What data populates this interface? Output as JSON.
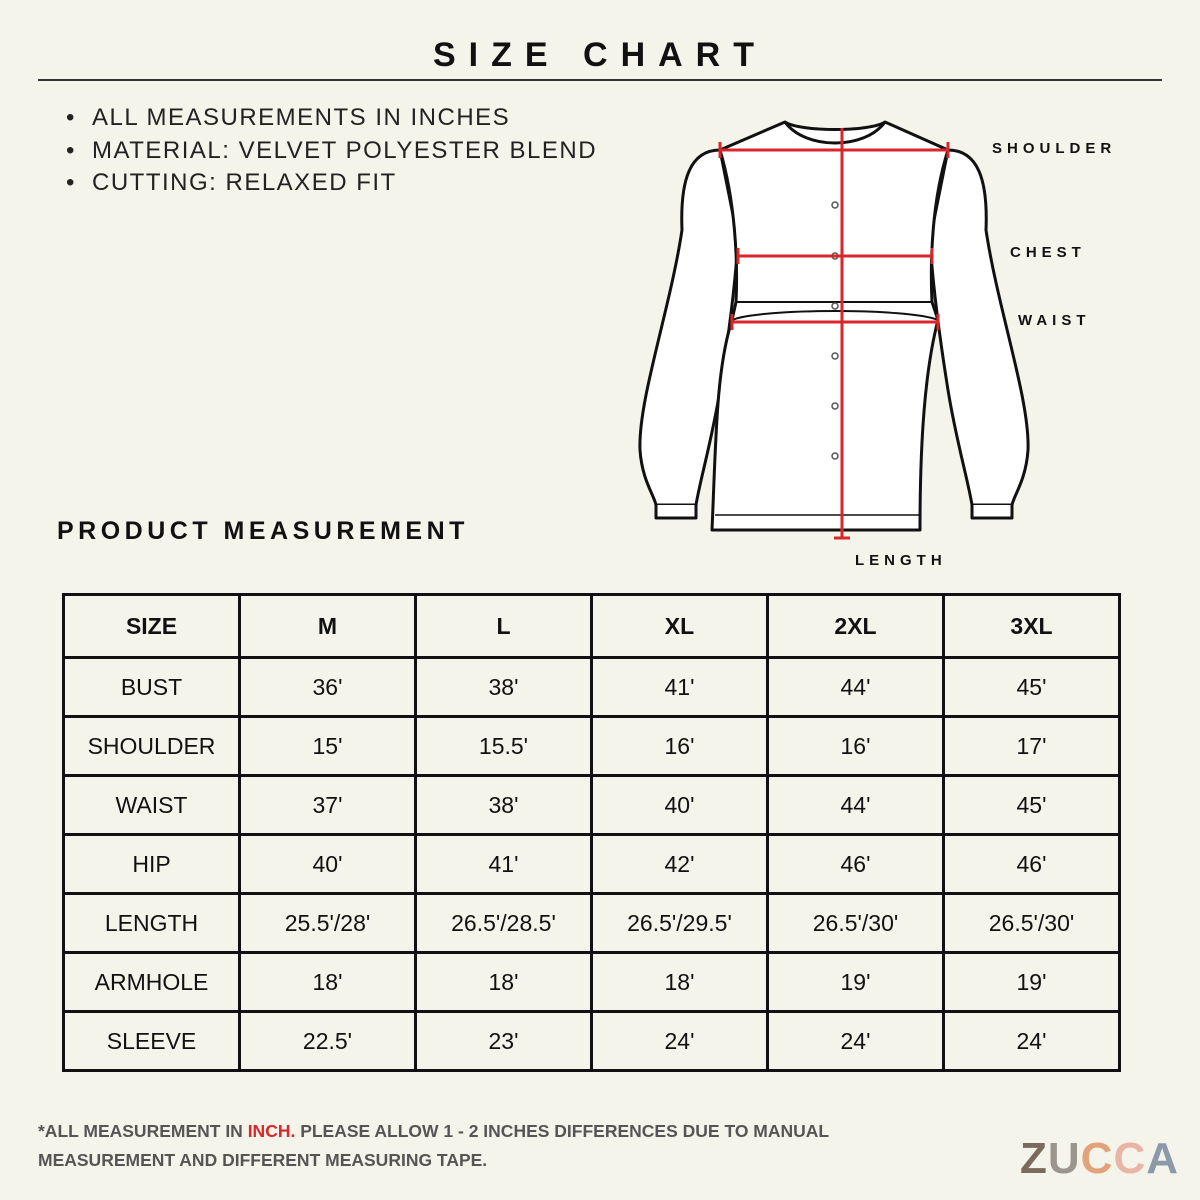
{
  "title": "SIZE CHART",
  "notes": [
    "ALL MEASUREMENTS IN INCHES",
    "MATERIAL: VELVET POLYESTER BLEND",
    "CUTTING: RELAXED FIT"
  ],
  "diagram_labels": {
    "shoulder": "SHOULDER",
    "chest": "CHEST",
    "waist": "WAIST",
    "length": "LENGTH"
  },
  "section_title": "PRODUCT MEASUREMENT",
  "table": {
    "header": [
      "SIZE",
      "M",
      "L",
      "XL",
      "2XL",
      "3XL"
    ],
    "rows": [
      [
        "BUST",
        "36'",
        "38'",
        "41'",
        "44'",
        "45'"
      ],
      [
        "SHOULDER",
        "15'",
        "15.5'",
        "16'",
        "16'",
        "17'"
      ],
      [
        "WAIST",
        "37'",
        "38'",
        "40'",
        "44'",
        "45'"
      ],
      [
        "HIP",
        "40'",
        "41'",
        "42'",
        "46'",
        "46'"
      ],
      [
        "LENGTH",
        "25.5'/28'",
        "26.5'/28.5'",
        "26.5'/29.5'",
        "26.5'/30'",
        "26.5'/30'"
      ],
      [
        "ARMHOLE",
        "18'",
        "18'",
        "18'",
        "19'",
        "19'"
      ],
      [
        "SLEEVE",
        "22.5'",
        "23'",
        "24'",
        "24'",
        "24'"
      ]
    ]
  },
  "footnote": {
    "before": "*ALL MEASUREMENT IN ",
    "highlight": "INCH.",
    "after": " PLEASE ALLOW 1 - 2 INCHES DIFFERENCES DUE TO MANUAL MEASUREMENT AND DIFFERENT MEASURING TAPE."
  },
  "brand": [
    "Z",
    "U",
    "C",
    "C",
    "A"
  ]
}
